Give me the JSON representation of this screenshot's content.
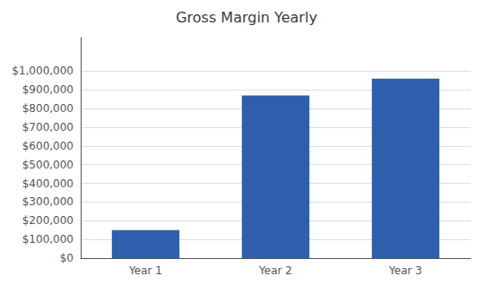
{
  "chart_data": {
    "type": "bar",
    "title": "Gross Margin Yearly",
    "categories": [
      "Year 1",
      "Year 2",
      "Year 3"
    ],
    "values": [
      150000,
      870000,
      960000
    ],
    "color": "#2E5FAC",
    "ylim": [
      0,
      1178750
    ],
    "yticks": [
      {
        "value": 0,
        "label": "$0"
      },
      {
        "value": 100000,
        "label": "$100,000"
      },
      {
        "value": 200000,
        "label": "$200,000"
      },
      {
        "value": 300000,
        "label": "$300,000"
      },
      {
        "value": 400000,
        "label": "$400,000"
      },
      {
        "value": 500000,
        "label": "$500,000"
      },
      {
        "value": 600000,
        "label": "$600,000"
      },
      {
        "value": 700000,
        "label": "$700,000"
      },
      {
        "value": 800000,
        "label": "$800,000"
      },
      {
        "value": 900000,
        "label": "$900,000"
      },
      {
        "value": 1000000,
        "label": "$1,000,000"
      }
    ],
    "grid": true
  }
}
